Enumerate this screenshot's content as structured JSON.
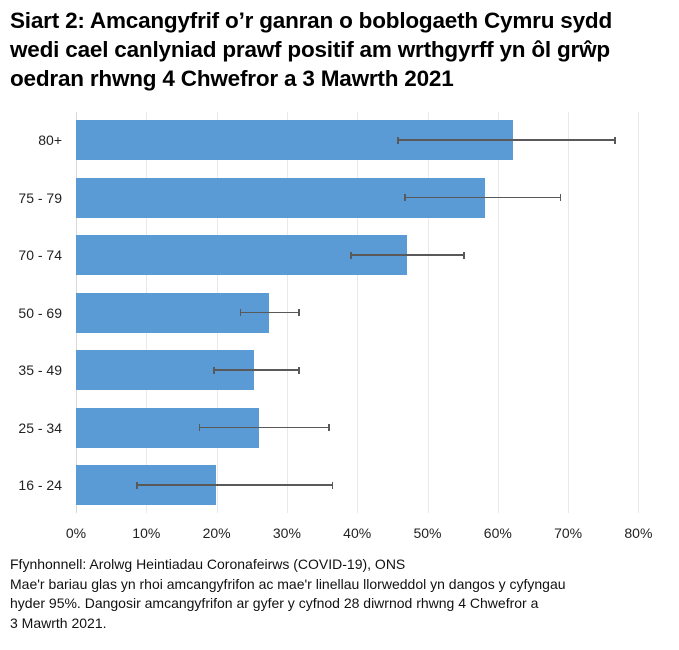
{
  "title": "Siart 2: Amcangyfrif o’r ganran o boblogaeth Cymru sydd wedi cael canlyniad prawf positif am wrthgyrff yn ôl grŵp oedran rhwng 4 Chwefror a 3 Mawrth 2021",
  "title_lines": [
    "Siart 2: Amcangyfrif o’r ganran o boblogaeth Cymru sydd",
    "wedi cael canlyniad prawf positif am wrthgyrff yn ôl grŵp",
    "oedran rhwng 4 Chwefror a 3 Mawrth 2021"
  ],
  "colors": {
    "bar": "#5b9bd5",
    "error_bar": "#595959",
    "gridline": "#e9e9e9"
  },
  "chart_data": {
    "type": "bar",
    "orientation": "horizontal",
    "title": "Siart 2: Amcangyfrif o’r ganran o boblogaeth Cymru sydd wedi cael canlyniad prawf positif am wrthgyrff yn ôl grŵp oedran rhwng 4 Chwefror a 3 Mawrth 2021",
    "categories": [
      "80+",
      "75 - 79",
      "70 - 74",
      "50 - 69",
      "35 - 49",
      "25 - 34",
      "16 - 24"
    ],
    "values": [
      62.2,
      58.2,
      47.1,
      27.4,
      25.3,
      26.0,
      19.9
    ],
    "ci_lower": [
      45.8,
      46.8,
      39.1,
      23.4,
      19.6,
      17.6,
      8.7
    ],
    "ci_upper": [
      76.7,
      68.9,
      55.2,
      31.7,
      31.7,
      36.0,
      36.5
    ],
    "xlabel": "",
    "ylabel": "",
    "xlim": [
      0,
      80
    ],
    "x_ticks": [
      "0%",
      "10%",
      "20%",
      "30%",
      "40%",
      "50%",
      "60%",
      "70%",
      "80%"
    ],
    "grid": "vertical",
    "legend": null
  },
  "notes": {
    "source": "Ffynhonnell: Arolwg Heintiadau Coronafeirws (COVID-19), ONS",
    "description_lines": [
      "Mae'r bariau glas yn rhoi amcangyfrifon ac mae'r linellau llorweddol yn dangos y cyfyngau",
      "hyder 95%. Dangosir amcangyfrifon ar gyfer y cyfnod 28 diwrnod rhwng 4 Chwefror a",
      "3 Mawrth 2021."
    ]
  }
}
